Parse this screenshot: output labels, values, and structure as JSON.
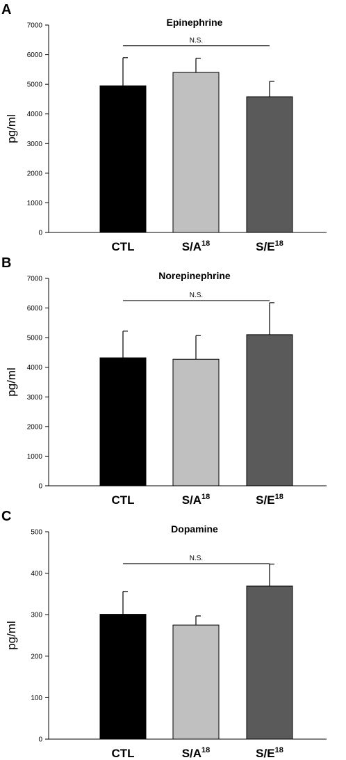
{
  "chart_data": [
    {
      "type": "bar",
      "panel_label": "A",
      "title": "Epinephrine",
      "ylabel": "pg/ml",
      "ylim": [
        0,
        7000
      ],
      "yticks": [
        "0",
        "1000",
        "2000",
        "3000",
        "4000",
        "5000",
        "6000",
        "7000"
      ],
      "categories": [
        {
          "base": "CTL",
          "sup": ""
        },
        {
          "base": "S/A",
          "sup": "18"
        },
        {
          "base": "S/E",
          "sup": "18"
        }
      ],
      "values": [
        4950,
        5400,
        4580
      ],
      "errors": [
        950,
        480,
        520
      ],
      "colors": [
        "#000000",
        "#c0c0c0",
        "#5a5a5a"
      ],
      "annotation": {
        "text": "N.S.",
        "from": 0,
        "to": 2,
        "y": 6300
      }
    },
    {
      "type": "bar",
      "panel_label": "B",
      "title": "Norepinephrine",
      "ylabel": "pg/ml",
      "ylim": [
        0,
        7000
      ],
      "yticks": [
        "0",
        "1000",
        "2000",
        "3000",
        "4000",
        "5000",
        "6000",
        "7000"
      ],
      "categories": [
        {
          "base": "CTL",
          "sup": ""
        },
        {
          "base": "S/A",
          "sup": "18"
        },
        {
          "base": "S/E",
          "sup": "18"
        }
      ],
      "values": [
        4320,
        4270,
        5100
      ],
      "errors": [
        900,
        800,
        1080
      ],
      "colors": [
        "#000000",
        "#c0c0c0",
        "#5a5a5a"
      ],
      "annotation": {
        "text": "N.S.",
        "from": 0,
        "to": 2,
        "y": 6250
      }
    },
    {
      "type": "bar",
      "panel_label": "C",
      "title": "Dopamine",
      "ylabel": "pg/ml",
      "ylim": [
        0,
        500
      ],
      "yticks": [
        "0",
        "100",
        "200",
        "300",
        "400",
        "500"
      ],
      "categories": [
        {
          "base": "CTL",
          "sup": ""
        },
        {
          "base": "S/A",
          "sup": "18"
        },
        {
          "base": "S/E",
          "sup": "18"
        }
      ],
      "values": [
        301,
        275,
        369
      ],
      "errors": [
        55,
        22,
        53
      ],
      "colors": [
        "#000000",
        "#c0c0c0",
        "#5a5a5a"
      ],
      "annotation": {
        "text": "N.S.",
        "from": 0,
        "to": 2,
        "y": 423
      }
    }
  ]
}
